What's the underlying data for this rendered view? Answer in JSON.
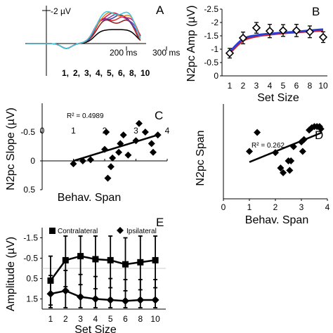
{
  "chart_data": [
    {
      "panel": "A",
      "type": "line",
      "y_scale_label": "-2 µV",
      "time_ticks": [
        "200 ms",
        "300 ms"
      ],
      "set_size_labels": [
        "1",
        "2",
        "3",
        "4",
        "5",
        "6",
        "8",
        "10"
      ],
      "label_colors": [
        "#000000",
        "#8b1a1a",
        "#e0262f",
        "#2c3ea8",
        "#7b3fa0",
        "#d4145a",
        "#e8821e",
        "#3bc6e0"
      ],
      "series_colors": [
        "#000000",
        "#8b1a1a",
        "#e0262f",
        "#2c3ea8",
        "#7b3fa0",
        "#d4145a",
        "#e8821e",
        "#3bc6e0"
      ],
      "series_amplitudes_uV": [
        -1.0,
        -1.6,
        -1.8,
        -1.9,
        -1.95,
        -2.05,
        -2.1,
        -2.2
      ]
    },
    {
      "panel": "B",
      "type": "line",
      "ylabel": "N2pc Amp (µV)",
      "xlabel": "Set Size",
      "categories": [
        "1",
        "2",
        "3",
        "4",
        "5",
        "6",
        "8",
        "10"
      ],
      "yticks": [
        "-2.5",
        "-2",
        "-1.5",
        "-1",
        "-0.5",
        "0"
      ],
      "ylim": [
        -2.5,
        0
      ],
      "values": [
        -0.85,
        -1.42,
        -1.8,
        -1.68,
        -1.7,
        -1.7,
        -1.65,
        -1.45
      ],
      "errors": [
        0.18,
        0.22,
        0.2,
        0.25,
        0.22,
        0.23,
        0.22,
        0.2
      ],
      "fit_red": [
        -0.85,
        -1.32,
        -1.48,
        -1.55,
        -1.6,
        -1.63,
        -1.67,
        -1.7
      ],
      "fit_blue": [
        -0.9,
        -1.38,
        -1.52,
        -1.58,
        -1.62,
        -1.65,
        -1.7,
        -1.74
      ],
      "fit_colors": [
        "#e02020",
        "#2a3fd6"
      ]
    },
    {
      "panel": "C",
      "type": "scatter",
      "ylabel": "N2pc Slope (µV)",
      "xlabel": "Behav. Span",
      "xticks": [
        "0",
        "1",
        "2",
        "3",
        "4"
      ],
      "yticks": [
        "-0.5",
        "0",
        "0.5"
      ],
      "xlim": [
        0,
        4
      ],
      "ylim": [
        -1.0,
        0.5
      ],
      "annotation": "R² = 0.4989",
      "points": [
        [
          1.0,
          0.05
        ],
        [
          1.3,
          0.0
        ],
        [
          1.55,
          -0.02
        ],
        [
          2.0,
          -0.2
        ],
        [
          2.05,
          -0.5
        ],
        [
          2.1,
          0.3
        ],
        [
          2.2,
          0.1
        ],
        [
          2.25,
          -0.05
        ],
        [
          2.45,
          -0.15
        ],
        [
          2.5,
          -0.3
        ],
        [
          2.6,
          -0.45
        ],
        [
          2.75,
          -0.1
        ],
        [
          3.0,
          -0.35
        ],
        [
          3.1,
          -0.65
        ],
        [
          3.3,
          -0.5
        ],
        [
          3.5,
          -0.3
        ],
        [
          3.55,
          -0.15
        ],
        [
          3.7,
          -0.45
        ]
      ],
      "trendline": [
        [
          1.0,
          0.0
        ],
        [
          3.7,
          -0.45
        ]
      ]
    },
    {
      "panel": "D",
      "type": "scatter",
      "ylabel": "N2pc Span",
      "xlabel": "Behav. Span",
      "xticks": [
        "0",
        "1",
        "2",
        "3",
        "4"
      ],
      "xlim": [
        0,
        4
      ],
      "ylim": [
        0,
        4
      ],
      "annotation": "R² = 0.262",
      "points": [
        [
          1.0,
          2.0
        ],
        [
          1.3,
          2.8
        ],
        [
          2.0,
          1.95
        ],
        [
          2.2,
          1.3
        ],
        [
          2.3,
          1.1
        ],
        [
          2.5,
          1.6
        ],
        [
          2.55,
          1.2
        ],
        [
          2.6,
          1.6
        ],
        [
          2.7,
          2.2
        ],
        [
          3.0,
          2.4
        ],
        [
          3.05,
          2.0
        ],
        [
          3.1,
          2.5
        ],
        [
          3.3,
          2.9
        ],
        [
          3.4,
          3.0
        ],
        [
          3.5,
          3.05
        ],
        [
          3.6,
          3.05
        ],
        [
          3.7,
          3.05
        ],
        [
          3.75,
          2.95
        ]
      ],
      "trendline": [
        [
          1.0,
          1.55
        ],
        [
          3.8,
          2.8
        ]
      ]
    },
    {
      "panel": "E",
      "type": "line",
      "ylabel": "Amplitude (µV)",
      "xlabel": "Set Size",
      "categories": [
        "1",
        "2",
        "3",
        "4",
        "5",
        "6",
        "8",
        "10"
      ],
      "yticks": [
        "-1.5",
        "-0.5",
        "0.5",
        "1.5"
      ],
      "ylim": [
        -2.0,
        2.0
      ],
      "legend_position": "top",
      "series": [
        {
          "name": "Contralateral",
          "marker": "square",
          "values": [
            0.6,
            -0.4,
            -0.6,
            -0.45,
            -0.4,
            -0.2,
            -0.3,
            -0.4
          ],
          "errors": [
            1.2,
            1.3,
            1.4,
            1.45,
            1.35,
            1.3,
            1.35,
            1.35
          ]
        },
        {
          "name": "Ipsilateral",
          "marker": "diamond",
          "values": [
            1.25,
            1.1,
            1.4,
            1.5,
            1.55,
            1.6,
            1.55,
            1.55
          ],
          "errors": [
            0.9,
            1.0,
            1.1,
            1.1,
            1.05,
            1.05,
            1.0,
            1.0
          ]
        }
      ]
    }
  ]
}
